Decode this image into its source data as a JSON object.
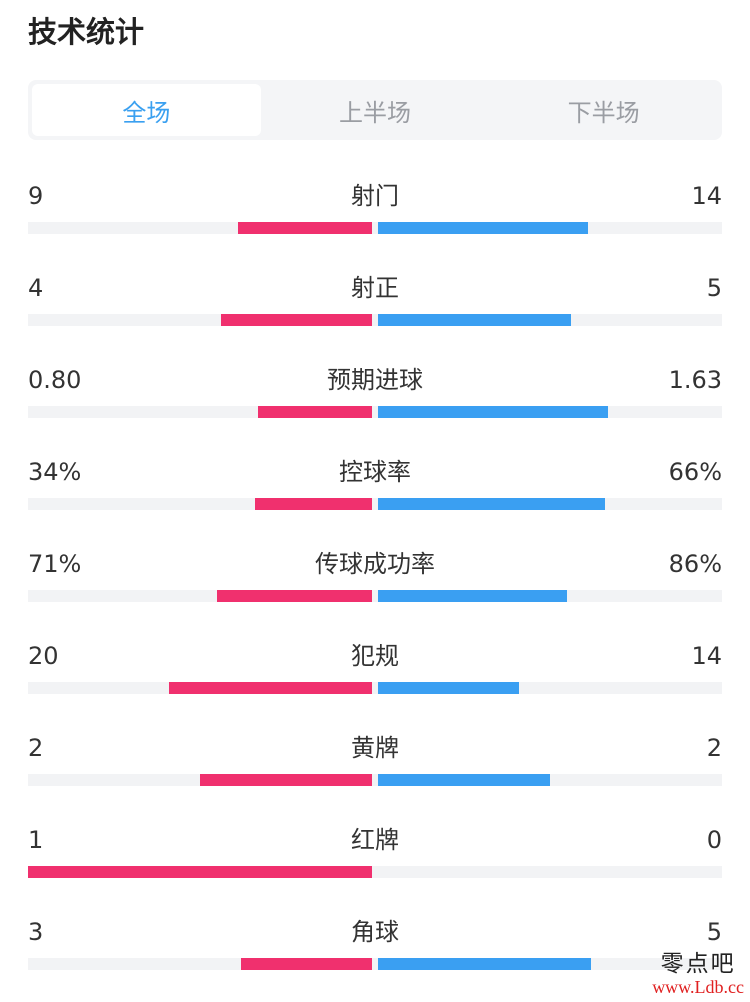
{
  "page_title": "技术统计",
  "tabs": [
    {
      "label": "全场",
      "active": true
    },
    {
      "label": "上半场",
      "active": false
    },
    {
      "label": "下半场",
      "active": false
    }
  ],
  "colors": {
    "home_bar": "#f0306e",
    "away_bar": "#3a9ff2",
    "active_tab": "#3aa0f0",
    "track": "#f2f3f5"
  },
  "stats": [
    {
      "label": "射门",
      "home": "9",
      "away": "14",
      "home_ratio": 0.39,
      "away_ratio": 0.61
    },
    {
      "label": "射正",
      "home": "4",
      "away": "5",
      "home_ratio": 0.44,
      "away_ratio": 0.56
    },
    {
      "label": "预期进球",
      "home": "0.80",
      "away": "1.63",
      "home_ratio": 0.33,
      "away_ratio": 0.67
    },
    {
      "label": "控球率",
      "home": "34%",
      "away": "66%",
      "home_ratio": 0.34,
      "away_ratio": 0.66
    },
    {
      "label": "传球成功率",
      "home": "71%",
      "away": "86%",
      "home_ratio": 0.45,
      "away_ratio": 0.55
    },
    {
      "label": "犯规",
      "home": "20",
      "away": "14",
      "home_ratio": 0.59,
      "away_ratio": 0.41
    },
    {
      "label": "黄牌",
      "home": "2",
      "away": "2",
      "home_ratio": 0.5,
      "away_ratio": 0.5
    },
    {
      "label": "红牌",
      "home": "1",
      "away": "0",
      "home_ratio": 1.0,
      "away_ratio": 0.0
    },
    {
      "label": "角球",
      "home": "3",
      "away": "5",
      "home_ratio": 0.38,
      "away_ratio": 0.62
    }
  ],
  "watermark": {
    "name": "零点吧",
    "url": "www.Ldb.cc"
  }
}
